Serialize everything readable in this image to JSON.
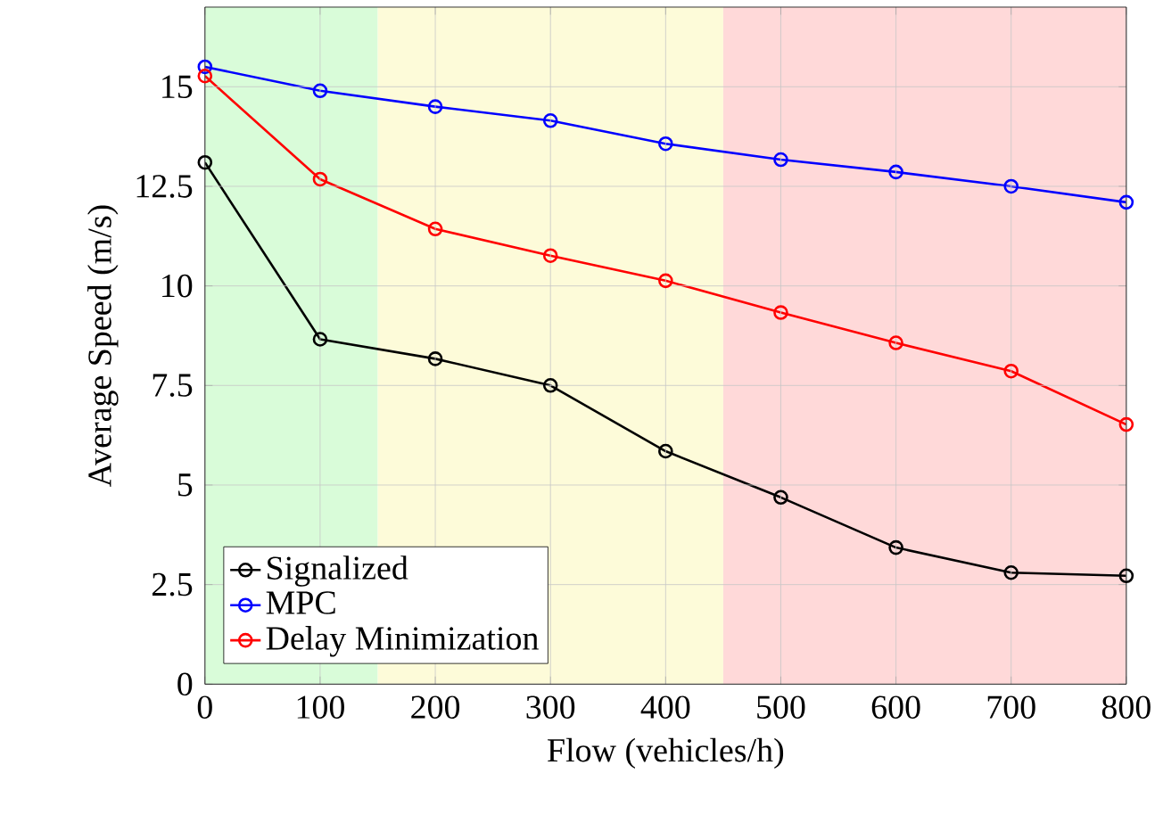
{
  "chart_data": {
    "type": "line",
    "xlabel": "Flow (vehicles/h)",
    "ylabel": "Average Speed (m/s)",
    "x": [
      0,
      100,
      200,
      300,
      400,
      500,
      600,
      700,
      800
    ],
    "series": [
      {
        "name": "Signalized",
        "color": "#000000",
        "values": [
          13.1,
          8.66,
          8.17,
          7.5,
          5.85,
          4.69,
          3.43,
          2.8,
          2.72
        ]
      },
      {
        "name": "MPC",
        "color": "#0000ff",
        "values": [
          15.5,
          14.9,
          14.5,
          14.15,
          13.57,
          13.17,
          12.86,
          12.5,
          12.1
        ]
      },
      {
        "name": "Delay Minimization",
        "color": "#ff0000",
        "values": [
          15.27,
          12.68,
          11.43,
          10.76,
          10.13,
          9.33,
          8.57,
          7.86,
          6.52
        ]
      }
    ],
    "bands": [
      {
        "axis": "x",
        "from": 0,
        "to": 150,
        "color": "#d9fcd9"
      },
      {
        "axis": "x",
        "from": 150,
        "to": 450,
        "color": "#fdfbd9"
      },
      {
        "axis": "x",
        "from": 450,
        "to": 800,
        "color": "#ffd9d9"
      }
    ],
    "xlim": [
      0,
      800
    ],
    "ylim": [
      0,
      17
    ],
    "xticks": [
      0,
      100,
      200,
      300,
      400,
      500,
      600,
      700,
      800
    ],
    "yticks": [
      0,
      2.5,
      5,
      7.5,
      10,
      12.5,
      15
    ],
    "grid": true,
    "legend": "bottom left",
    "marker": "circle",
    "line_style": "solid"
  }
}
